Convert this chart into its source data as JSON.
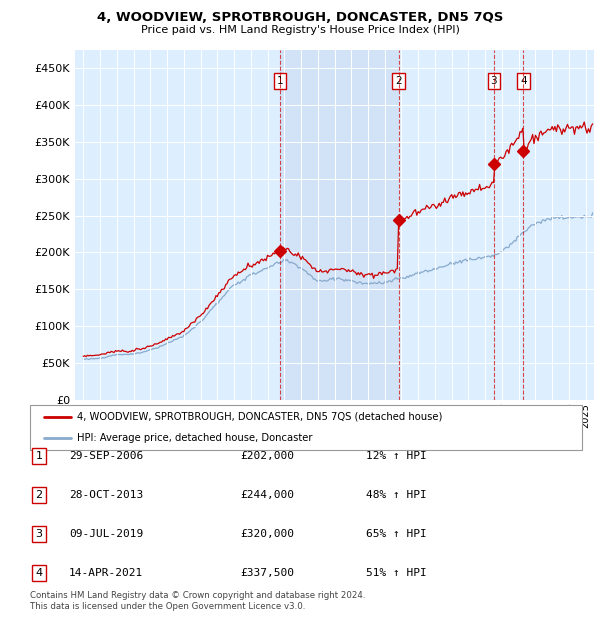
{
  "title": "4, WOODVIEW, SPROTBROUGH, DONCASTER, DN5 7QS",
  "subtitle": "Price paid vs. HM Land Registry's House Price Index (HPI)",
  "property_label": "4, WOODVIEW, SPROTBROUGH, DONCASTER, DN5 7QS (detached house)",
  "hpi_label": "HPI: Average price, detached house, Doncaster",
  "footnote": "Contains HM Land Registry data © Crown copyright and database right 2024.\nThis data is licensed under the Open Government Licence v3.0.",
  "transactions": [
    {
      "num": 1,
      "date": "29-SEP-2006",
      "price": 202000,
      "year": 2006.75,
      "pct": "12%"
    },
    {
      "num": 2,
      "date": "28-OCT-2013",
      "price": 244000,
      "year": 2013.83,
      "pct": "48%"
    },
    {
      "num": 3,
      "date": "09-JUL-2019",
      "price": 320000,
      "year": 2019.52,
      "pct": "65%"
    },
    {
      "num": 4,
      "date": "14-APR-2021",
      "price": 337500,
      "year": 2021.28,
      "pct": "51%"
    }
  ],
  "ylim": [
    0,
    475000
  ],
  "yticks": [
    0,
    50000,
    100000,
    150000,
    200000,
    250000,
    300000,
    350000,
    400000,
    450000
  ],
  "xlim_start": 1994.5,
  "xlim_end": 2025.5,
  "property_color": "#cc0000",
  "hpi_color": "#88aacc",
  "shade_color": "#ddeeff",
  "plot_bg": "#ddeeff"
}
